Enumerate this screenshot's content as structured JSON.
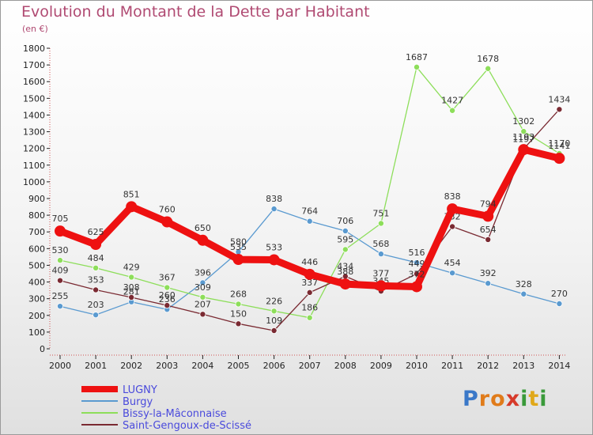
{
  "title": "Evolution du Montant de la Dette par Habitant",
  "unit": "(en €)",
  "logo": {
    "letters": [
      {
        "ch": "P",
        "color": "#3a78c8"
      },
      {
        "ch": "r",
        "color": "#e07b1a"
      },
      {
        "ch": "o",
        "color": "#e07b1a"
      },
      {
        "ch": "x",
        "color": "#d63a2a"
      },
      {
        "ch": "i",
        "color": "#3a9a3a"
      },
      {
        "ch": "t",
        "color": "#e0a81a"
      },
      {
        "ch": "i",
        "color": "#3a9a3a"
      }
    ]
  },
  "chart_data": {
    "type": "line",
    "title": "Evolution du Montant de la Dette par Habitant",
    "ylabel": "(en €)",
    "xlabel": "",
    "x": [
      2000,
      2001,
      2002,
      2003,
      2004,
      2005,
      2006,
      2007,
      2008,
      2009,
      2010,
      2011,
      2012,
      2013,
      2014
    ],
    "ylim": [
      0,
      1800
    ],
    "y_ticks": [
      0,
      100,
      200,
      300,
      400,
      500,
      600,
      700,
      800,
      900,
      1000,
      1100,
      1200,
      1300,
      1400,
      1500,
      1600,
      1700,
      1800
    ],
    "grid": false,
    "legend_position": "bottom-left",
    "series": [
      {
        "name": "LUGNY",
        "color": "#ee1111",
        "emphasis": true,
        "values": [
          705,
          625,
          851,
          760,
          650,
          535,
          533,
          446,
          388,
          377,
          372,
          838,
          794,
          1193,
          1141
        ]
      },
      {
        "name": "Burgy",
        "color": "#5a9ad0",
        "emphasis": false,
        "values": [
          255,
          203,
          281,
          236,
          396,
          580,
          838,
          764,
          706,
          568,
          516,
          454,
          392,
          328,
          270
        ]
      },
      {
        "name": "Bissy-la-Mâconnaise",
        "color": "#8dde5a",
        "emphasis": false,
        "values": [
          530,
          484,
          429,
          367,
          309,
          268,
          226,
          186,
          595,
          751,
          1687,
          1427,
          1678,
          1302,
          1170
        ]
      },
      {
        "name": "Saint-Gengoux-de-Scissé",
        "color": "#7a2a32",
        "emphasis": false,
        "values": [
          409,
          353,
          308,
          260,
          207,
          150,
          109,
          337,
          434,
          345,
          449,
          732,
          654,
          1197,
          1434
        ]
      }
    ]
  }
}
